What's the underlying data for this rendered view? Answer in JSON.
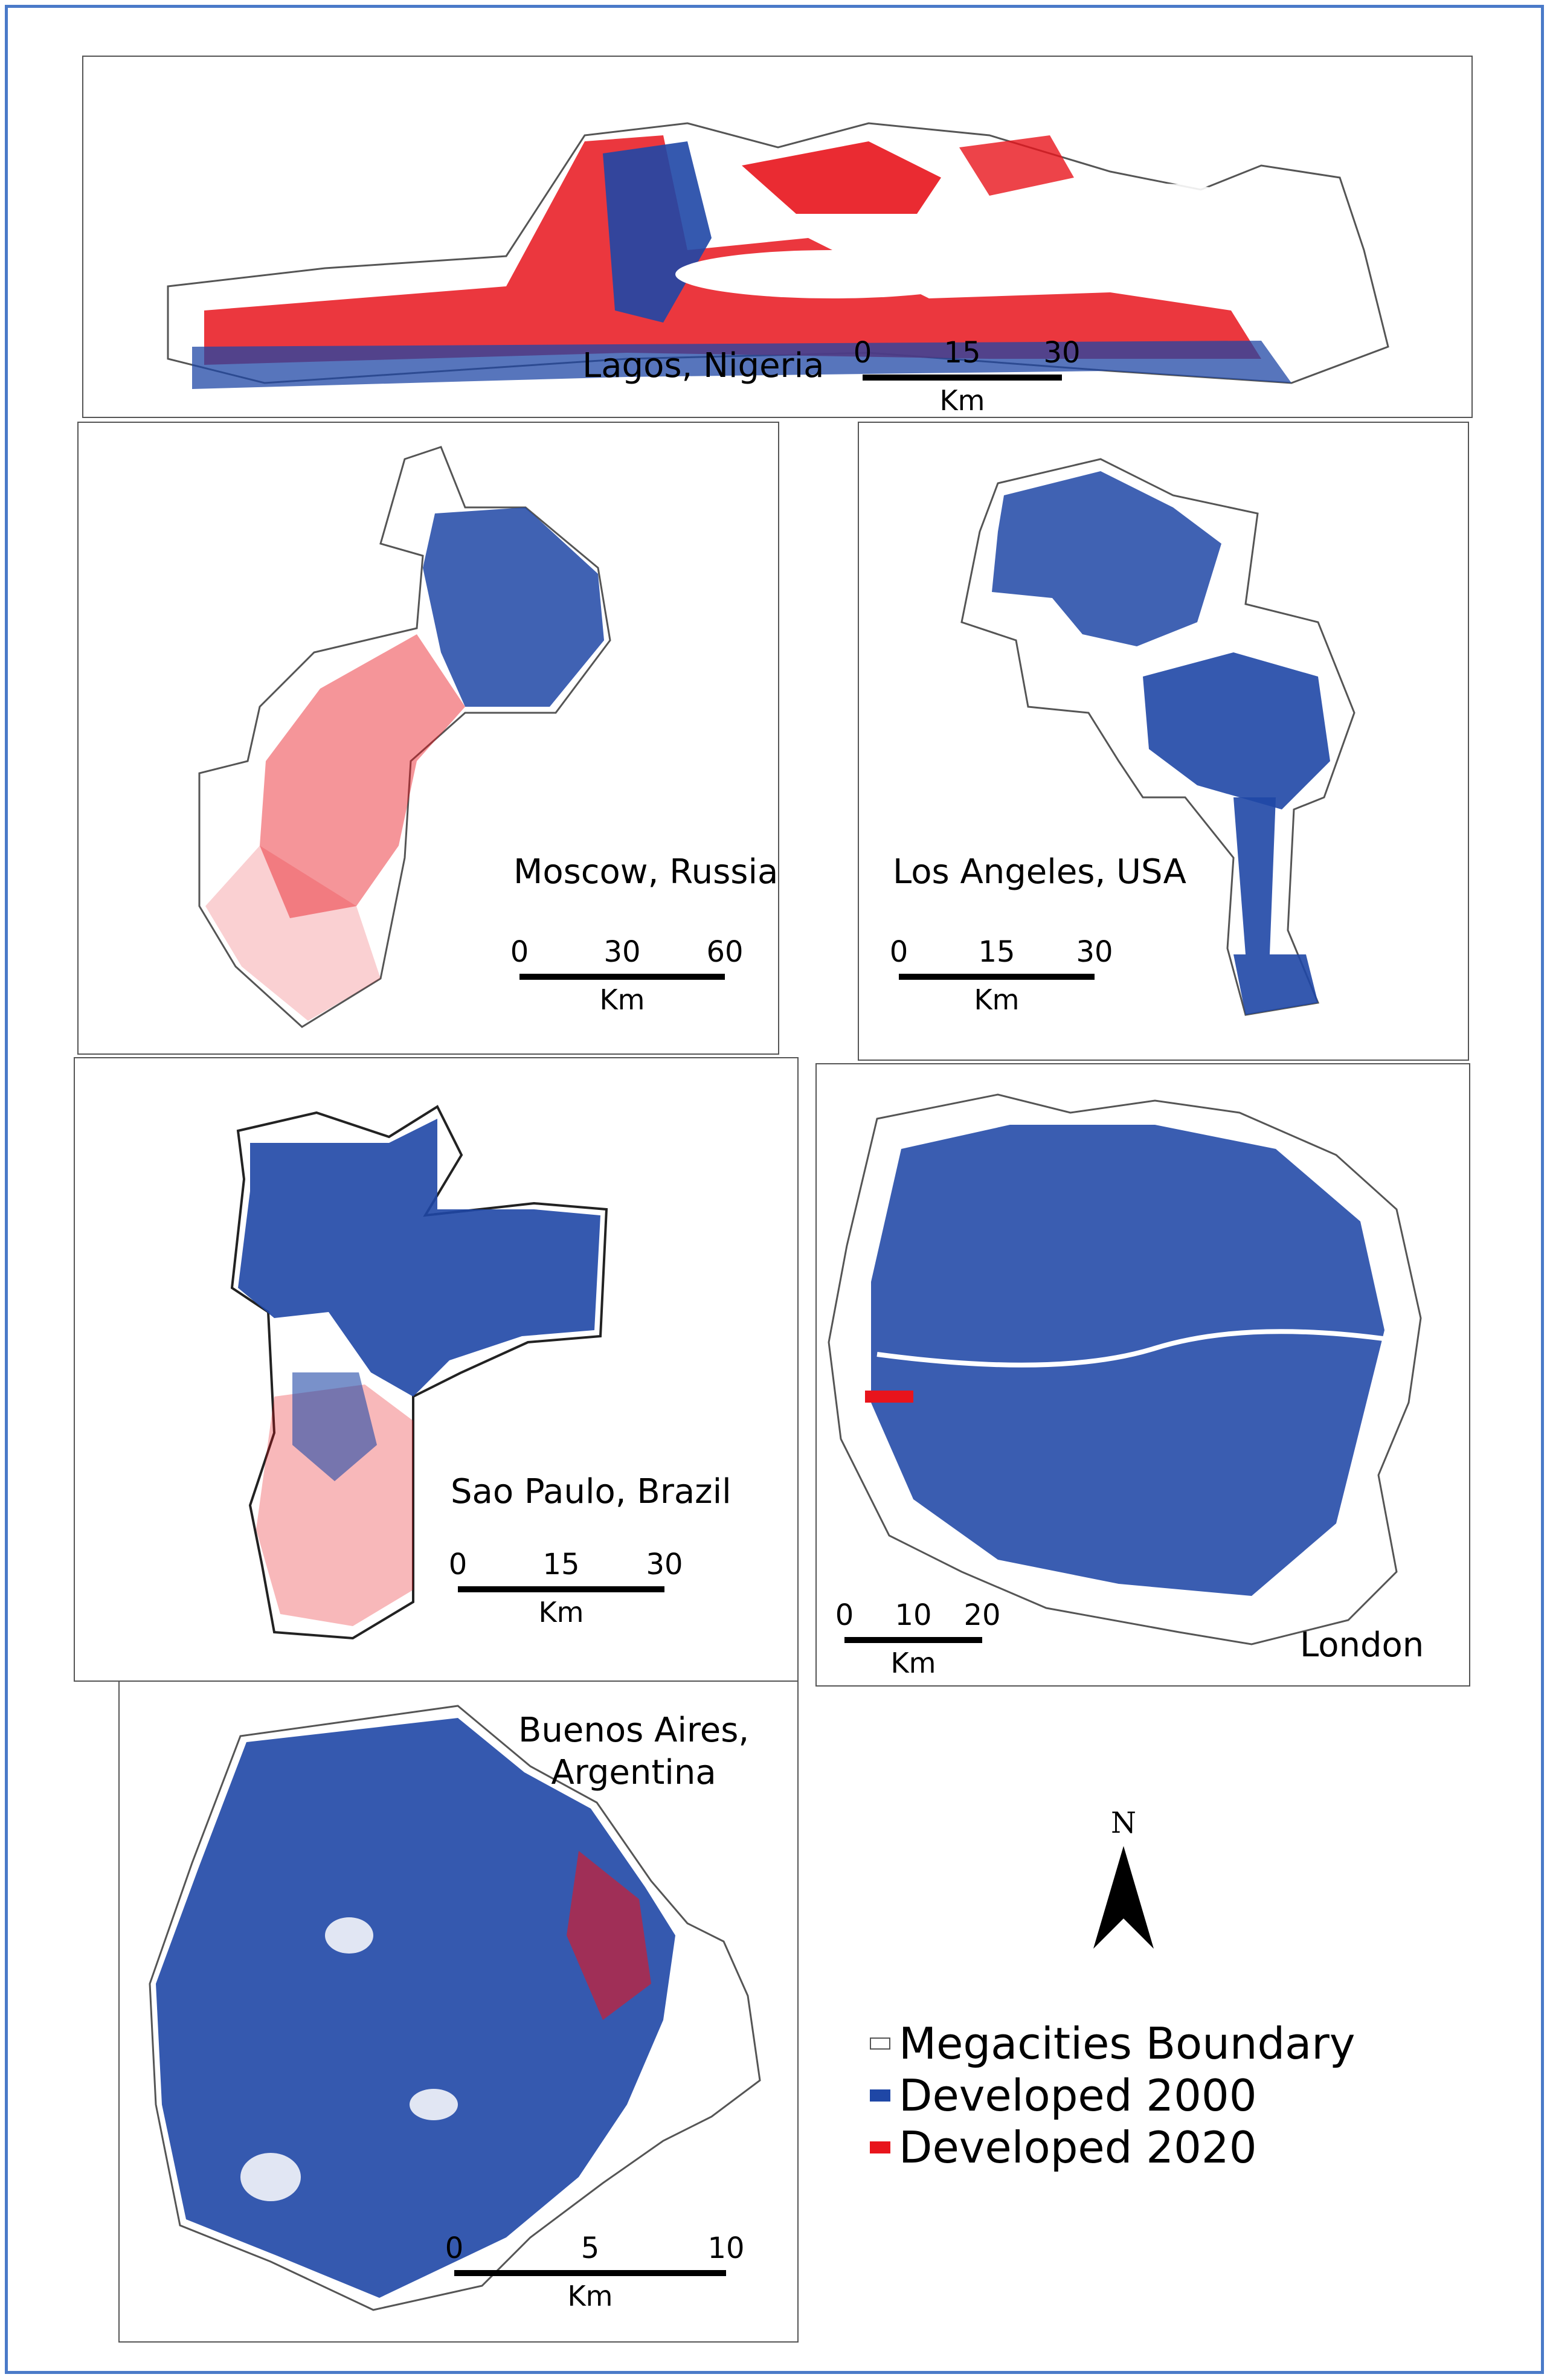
{
  "colors": {
    "developed_2000": "#1f47a6",
    "developed_2020": "#e8141c",
    "boundary": "#ffffff",
    "frame": "#4a7ac8"
  },
  "panels": {
    "lagos": {
      "label": "Lagos, Nigeria",
      "scale_ticks": [
        "0",
        "15",
        "30"
      ],
      "unit": "Km"
    },
    "moscow": {
      "label": "Moscow, Russia",
      "scale_ticks": [
        "0",
        "30",
        "60"
      ],
      "unit": "Km"
    },
    "la": {
      "label": "Los Angeles, USA",
      "scale_ticks": [
        "0",
        "15",
        "30"
      ],
      "unit": "Km"
    },
    "saopaulo": {
      "label": "Sao Paulo, Brazil",
      "scale_ticks": [
        "0",
        "15",
        "30"
      ],
      "unit": "Km"
    },
    "london": {
      "label": "London",
      "scale_ticks": [
        "0",
        "10",
        "20"
      ],
      "unit": "Km"
    },
    "buenos": {
      "label_line1": "Buenos Aires,",
      "label_line2": "Argentina",
      "scale_ticks": [
        "0",
        "5",
        "10"
      ],
      "unit": "Km"
    }
  },
  "north_arrow": {
    "label": "N"
  },
  "legend": [
    {
      "label": "Megacities Boundary",
      "icon": "boundary-swatch"
    },
    {
      "label": "Developed 2000",
      "icon": "blue-swatch"
    },
    {
      "label": "Developed 2020",
      "icon": "red-swatch"
    }
  ]
}
